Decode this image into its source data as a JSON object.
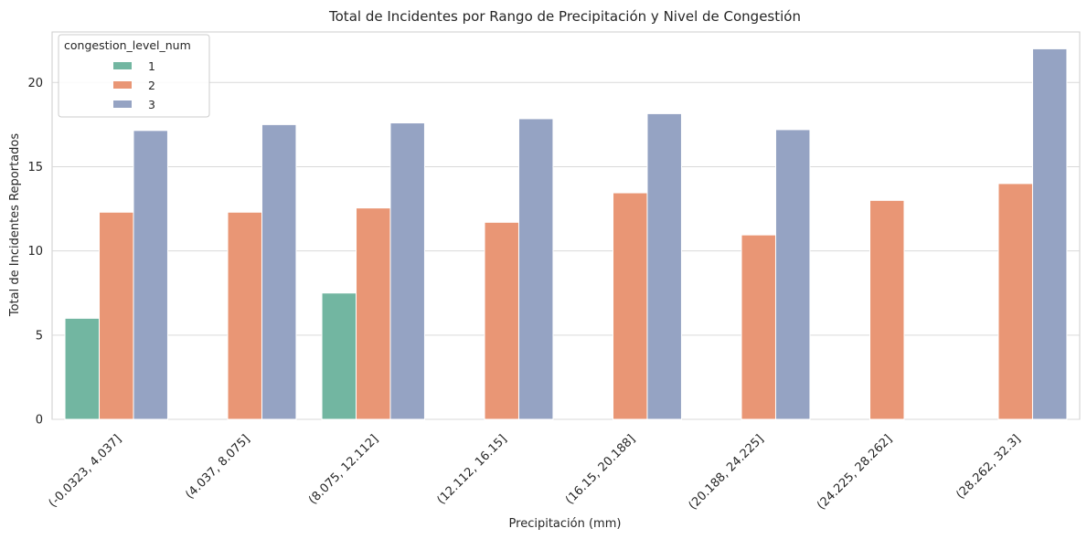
{
  "chart_data": {
    "type": "bar",
    "title": "Total de Incidentes por Rango de Precipitación y Nivel de Congestión",
    "xlabel": "Precipitación (mm)",
    "ylabel": "Total de Incidentes Reportados",
    "ylim": [
      0,
      23
    ],
    "yticks": [
      0,
      5,
      10,
      15,
      20
    ],
    "grid": true,
    "legend": {
      "title": "congestion_level_num",
      "position": "top-left"
    },
    "categories": [
      "(-0.0323, 4.037]",
      "(4.037, 8.075]",
      "(8.075, 12.112]",
      "(12.112, 16.15]",
      "(16.15, 20.188]",
      "(20.188, 24.225]",
      "(24.225, 28.262]",
      "(28.262, 32.3]"
    ],
    "series": [
      {
        "name": "1",
        "color": "#72b6a1",
        "values": [
          6.0,
          null,
          7.5,
          null,
          null,
          null,
          null,
          null
        ]
      },
      {
        "name": "2",
        "color": "#e99675",
        "values": [
          12.3,
          12.3,
          12.55,
          11.7,
          13.45,
          10.95,
          13.0,
          14.0
        ]
      },
      {
        "name": "3",
        "color": "#95a3c3",
        "values": [
          17.15,
          17.5,
          17.6,
          17.85,
          18.15,
          17.2,
          null,
          22.0
        ]
      }
    ]
  }
}
